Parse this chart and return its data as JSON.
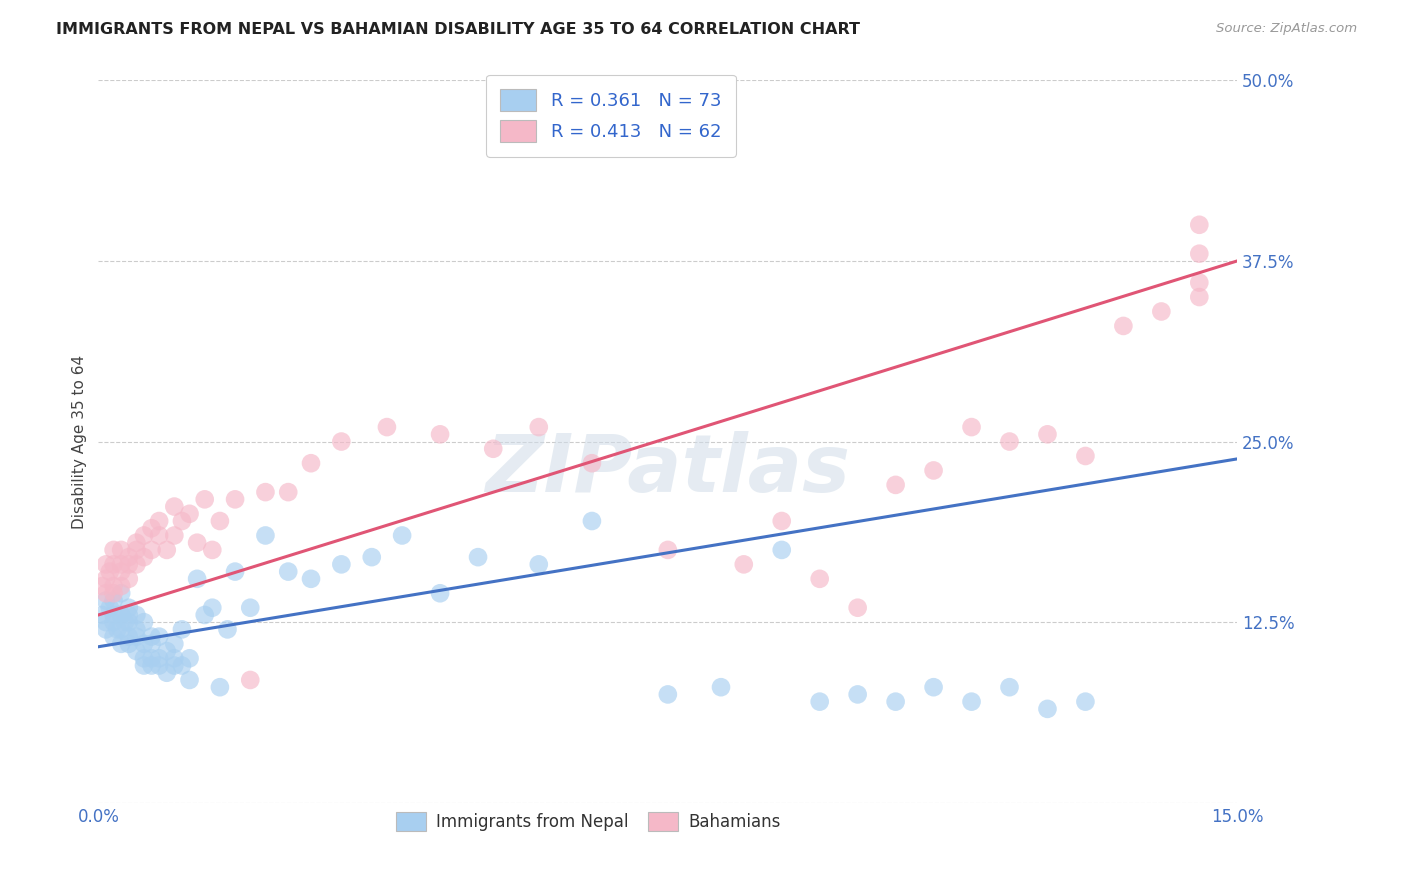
{
  "title": "IMMIGRANTS FROM NEPAL VS BAHAMIAN DISABILITY AGE 35 TO 64 CORRELATION CHART",
  "source": "Source: ZipAtlas.com",
  "ylabel": "Disability Age 35 to 64",
  "xlim": [
    0.0,
    0.15
  ],
  "ylim": [
    0.0,
    0.5
  ],
  "xticks": [
    0.0,
    0.05,
    0.1,
    0.15
  ],
  "xticklabels": [
    "0.0%",
    "",
    "",
    "15.0%"
  ],
  "yticks": [
    0.0,
    0.125,
    0.25,
    0.375,
    0.5
  ],
  "yticklabels": [
    "",
    "12.5%",
    "25.0%",
    "37.5%",
    "50.0%"
  ],
  "legend_r1": "R = 0.361",
  "legend_n1": "N = 73",
  "legend_r2": "R = 0.413",
  "legend_n2": "N = 62",
  "color_nepal": "#a8cff0",
  "color_bahamian": "#f5b8c8",
  "color_line_nepal": "#4472c4",
  "color_line_bahamian": "#e05575",
  "nepal_line_x0": 0.0,
  "nepal_line_y0": 0.108,
  "nepal_line_x1": 0.15,
  "nepal_line_y1": 0.238,
  "bah_line_x0": 0.0,
  "bah_line_y0": 0.13,
  "bah_line_x1": 0.15,
  "bah_line_y1": 0.375,
  "watermark": "ZIPatlas",
  "background_color": "#ffffff",
  "grid_color": "#cccccc",
  "nepal_x": [
    0.0005,
    0.001,
    0.001,
    0.001,
    0.0015,
    0.002,
    0.002,
    0.002,
    0.002,
    0.0025,
    0.003,
    0.003,
    0.003,
    0.003,
    0.003,
    0.0035,
    0.004,
    0.004,
    0.004,
    0.004,
    0.004,
    0.005,
    0.005,
    0.005,
    0.005,
    0.006,
    0.006,
    0.006,
    0.006,
    0.007,
    0.007,
    0.007,
    0.007,
    0.008,
    0.008,
    0.008,
    0.009,
    0.009,
    0.01,
    0.01,
    0.01,
    0.011,
    0.011,
    0.012,
    0.012,
    0.013,
    0.014,
    0.015,
    0.016,
    0.017,
    0.018,
    0.02,
    0.022,
    0.025,
    0.028,
    0.032,
    0.036,
    0.04,
    0.045,
    0.05,
    0.058,
    0.065,
    0.075,
    0.082,
    0.09,
    0.095,
    0.1,
    0.105,
    0.11,
    0.115,
    0.12,
    0.125,
    0.13
  ],
  "nepal_y": [
    0.13,
    0.14,
    0.12,
    0.125,
    0.135,
    0.13,
    0.115,
    0.125,
    0.14,
    0.12,
    0.13,
    0.145,
    0.12,
    0.13,
    0.11,
    0.125,
    0.115,
    0.13,
    0.125,
    0.11,
    0.135,
    0.105,
    0.12,
    0.115,
    0.13,
    0.095,
    0.11,
    0.125,
    0.1,
    0.1,
    0.115,
    0.11,
    0.095,
    0.1,
    0.115,
    0.095,
    0.105,
    0.09,
    0.095,
    0.11,
    0.1,
    0.12,
    0.095,
    0.1,
    0.085,
    0.155,
    0.13,
    0.135,
    0.08,
    0.12,
    0.16,
    0.135,
    0.185,
    0.16,
    0.155,
    0.165,
    0.17,
    0.185,
    0.145,
    0.17,
    0.165,
    0.195,
    0.075,
    0.08,
    0.175,
    0.07,
    0.075,
    0.07,
    0.08,
    0.07,
    0.08,
    0.065,
    0.07
  ],
  "bahamian_x": [
    0.0005,
    0.001,
    0.001,
    0.001,
    0.0015,
    0.002,
    0.002,
    0.002,
    0.002,
    0.003,
    0.003,
    0.003,
    0.003,
    0.004,
    0.004,
    0.004,
    0.005,
    0.005,
    0.005,
    0.006,
    0.006,
    0.007,
    0.007,
    0.008,
    0.008,
    0.009,
    0.01,
    0.01,
    0.011,
    0.012,
    0.013,
    0.014,
    0.015,
    0.016,
    0.018,
    0.02,
    0.022,
    0.025,
    0.028,
    0.032,
    0.038,
    0.045,
    0.052,
    0.058,
    0.065,
    0.075,
    0.085,
    0.09,
    0.095,
    0.1,
    0.105,
    0.11,
    0.115,
    0.12,
    0.125,
    0.13,
    0.135,
    0.14,
    0.145,
    0.145,
    0.145,
    0.145
  ],
  "bahamian_y": [
    0.15,
    0.155,
    0.165,
    0.145,
    0.16,
    0.165,
    0.15,
    0.175,
    0.145,
    0.16,
    0.175,
    0.15,
    0.165,
    0.17,
    0.155,
    0.165,
    0.18,
    0.165,
    0.175,
    0.185,
    0.17,
    0.19,
    0.175,
    0.185,
    0.195,
    0.175,
    0.185,
    0.205,
    0.195,
    0.2,
    0.18,
    0.21,
    0.175,
    0.195,
    0.21,
    0.085,
    0.215,
    0.215,
    0.235,
    0.25,
    0.26,
    0.255,
    0.245,
    0.26,
    0.235,
    0.175,
    0.165,
    0.195,
    0.155,
    0.135,
    0.22,
    0.23,
    0.26,
    0.25,
    0.255,
    0.24,
    0.33,
    0.34,
    0.35,
    0.36,
    0.38,
    0.4
  ]
}
